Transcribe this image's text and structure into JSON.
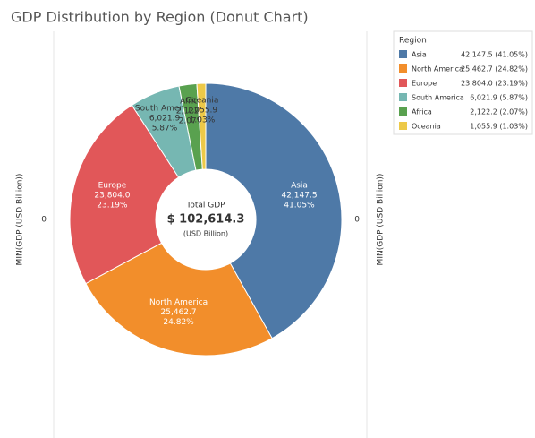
{
  "chart_data": {
    "type": "pie",
    "title": "GDP Distribution by Region (Donut Chart)",
    "categories": [
      "Asia",
      "North America",
      "Europe",
      "South America",
      "Africa",
      "Oceania"
    ],
    "values": [
      42147.5,
      25462.7,
      23804.0,
      6021.9,
      2122.2,
      1055.9
    ],
    "value_labels": [
      "42,147.5",
      "25,462.7",
      "23,804.0",
      "6,021.9",
      "2,122.2",
      "1,055.9"
    ],
    "percents": [
      41.05,
      24.82,
      23.19,
      5.87,
      2.07,
      1.03
    ],
    "percent_labels": [
      "41.05%",
      "24.82%",
      "23.19%",
      "5.87%",
      "2.07%",
      "1.03%"
    ],
    "legend_labels": [
      "42,147.5 (41.05%)",
      "25,462.7 (24.82%)",
      "23,804.0 (23.19%)",
      "6,021.9 (5.87%)",
      "2,122.2 (2.07%)",
      "1,055.9 (1.03%)"
    ],
    "colors": [
      "#4e79a7",
      "#f28e2b",
      "#e15759",
      "#76b7b2",
      "#59a14f",
      "#edc948"
    ],
    "label_colors": [
      "#ffffff",
      "#ffffff",
      "#ffffff",
      "#333333",
      "#333333",
      "#333333"
    ],
    "legend_title": "Region",
    "center_title": "Total GDP",
    "total": {
      "value": 102614.3,
      "label": "$ 102,614.3"
    },
    "center_unit": "(USD Billion)",
    "y_label": "MIN(GDP (USD Billion))",
    "y2_label": "MIN(GDP (USD Billion))",
    "yticks": [
      0
    ],
    "y2ticks": [
      0
    ]
  }
}
